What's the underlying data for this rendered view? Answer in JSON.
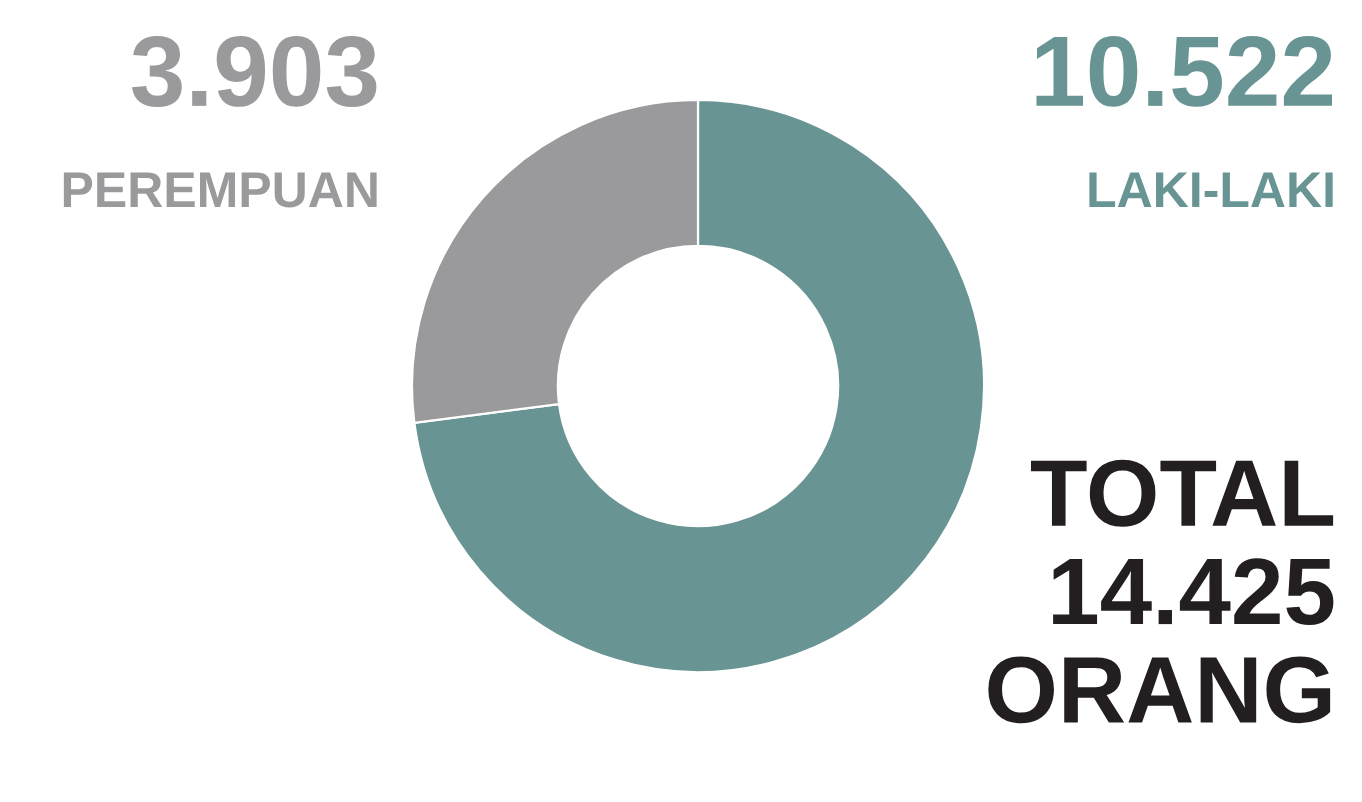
{
  "chart_data": {
    "type": "donut",
    "categories": [
      "LAKI-LAKI",
      "PEREMPUAN"
    ],
    "values": [
      10522,
      3903
    ],
    "colors": [
      "#689593",
      "#9a9a9c"
    ],
    "value_labels": [
      "10.522",
      "3.903"
    ],
    "annotations": [
      "TOTAL\n14.425\nORANG"
    ]
  }
}
